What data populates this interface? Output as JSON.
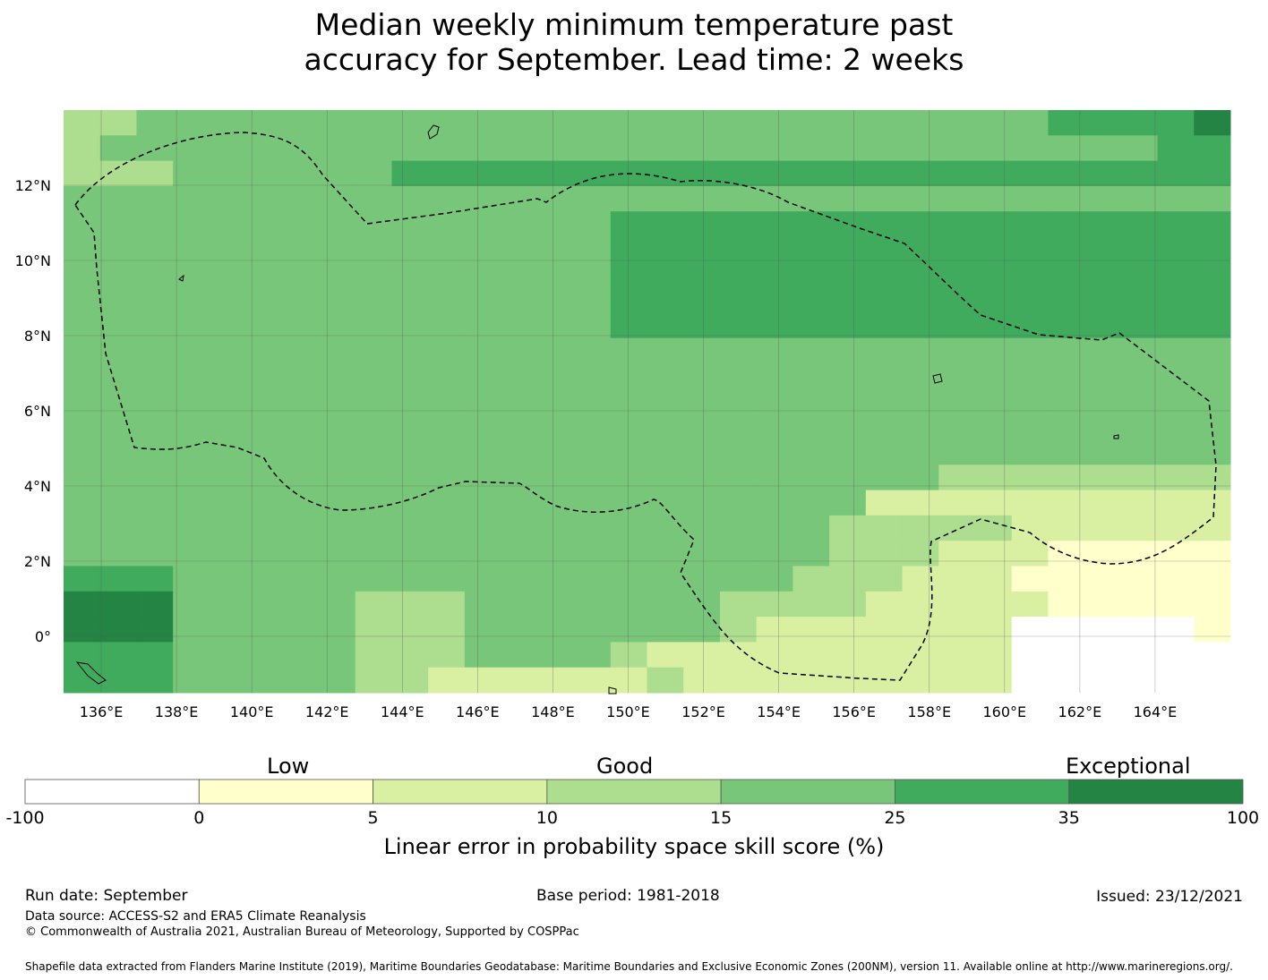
{
  "title": {
    "line1": "Median weekly minimum temperature past",
    "line2": "accuracy for September. Lead time: 2 weeks"
  },
  "map": {
    "lon_range": [
      135,
      166
    ],
    "lat_range": [
      -1.5,
      14
    ],
    "x_ticks": [
      "136°E",
      "138°E",
      "140°E",
      "142°E",
      "144°E",
      "146°E",
      "148°E",
      "150°E",
      "152°E",
      "154°E",
      "156°E",
      "158°E",
      "160°E",
      "162°E",
      "164°E"
    ],
    "y_ticks": [
      "12°N",
      "10°N",
      "8°N",
      "6°N",
      "4°N",
      "2°N",
      "0°"
    ],
    "grid_legend": {
      ".": "-100 to 0 (white)",
      "1": "0 to 5",
      "2": "5 to 10",
      "3": "10 to 15",
      "4": "15 to 25",
      "5": "25 to 35",
      "6": "35 to 100"
    },
    "grid_rows": [
      "33444444444444444444444444455556",
      "34444444444444444444444444444455",
      "33344444455555555555555555555555",
      "44444444444444444444444444444444",
      "44444444444444455555555555555555",
      "44444444444444455555555555555555",
      "44444444444444455555555555555555",
      "44444444444444455555555555555555",
      "44444444444444455555555555555555",
      "44444444444444444444444444444444",
      "44444444444444444444444444444444",
      "44444444444444444444444444444444",
      "44444444444444444444444444444444",
      "44444444444444444444444444444444",
      "44444444444444444444444433333333",
      "44444444444444444444442222222222",
      "44444444444444444444433333222222",
      "44444444444444444444433322211111",
      "55544444444444444444333222111111",
      "66644444333444444433332222211111",
      "66644444333444444432222222.....1",
      "55544444333444432222222222......",
      "55544444332222223222222222......"
    ]
  },
  "colorbar": {
    "labels": [
      "Low",
      "Good",
      "Exceptional"
    ],
    "boundaries": [
      "-100",
      "0",
      "5",
      "10",
      "15",
      "25",
      "35",
      "100"
    ],
    "colors": [
      "#ffffff",
      "#ffffcc",
      "#d9f0a3",
      "#addd8e",
      "#78c679",
      "#41ab5d",
      "#238443"
    ],
    "axis_label": "Linear error in probability space skill score (%)"
  },
  "footer": {
    "run_date": "Run date: September",
    "base_period": "Base period: 1981-2018",
    "issued": "Issued: 23/12/2021",
    "data_source": "Data source: ACCESS-S2 and ERA5 Climate Reanalysis",
    "copyright": "© Commonwealth of Australia 2021, Australian Bureau of Meteorology, Supported by COSPPac",
    "shapefile": "Shapefile data extracted from Flanders Marine Institute (2019), Maritime Boundaries Geodatabase: Maritime Boundaries and Exclusive Economic Zones (200NM), version 11. Available online at http://www.marineregions.org/."
  }
}
